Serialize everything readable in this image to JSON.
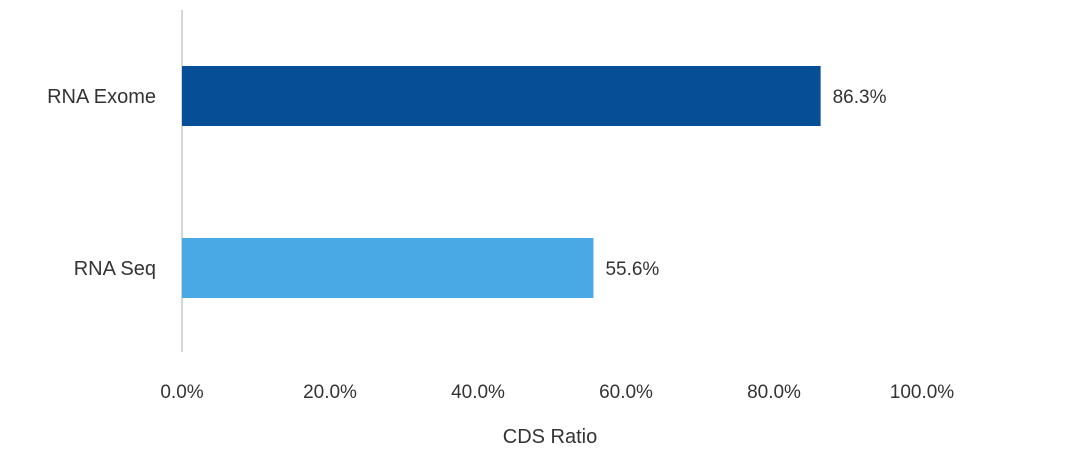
{
  "chart_data": {
    "type": "bar",
    "orientation": "horizontal",
    "title": "",
    "xlabel": "CDS Ratio",
    "ylabel": "",
    "xlim": [
      0,
      100
    ],
    "ticks": [
      0,
      20,
      40,
      60,
      80,
      100
    ],
    "tick_labels": [
      "0.0%",
      "20.0%",
      "40.0%",
      "60.0%",
      "80.0%",
      "100.0%"
    ],
    "categories": [
      "RNA Exome",
      "RNA Seq"
    ],
    "values": [
      86.3,
      55.6
    ],
    "value_labels": [
      "86.3%",
      "55.6%"
    ],
    "colors": [
      "#064f97",
      "#49a9e4"
    ],
    "grid": false,
    "legend": "none"
  }
}
